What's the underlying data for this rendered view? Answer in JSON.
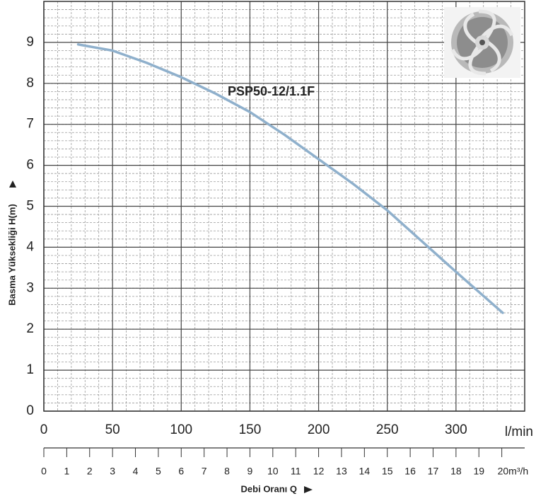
{
  "chart_data": {
    "type": "line",
    "xlabel": "Debi Oranı Q",
    "ylabel": "Basma Yüksekliği H(m)",
    "xunit": "l/min",
    "x": [
      25,
      50,
      75,
      100,
      125,
      150,
      175,
      200,
      225,
      250,
      275,
      300,
      334
    ],
    "series": [
      {
        "name": "PSP50-12/1.1F",
        "color": "#8fb0cc",
        "values": [
          8.95,
          8.8,
          8.5,
          8.15,
          7.75,
          7.3,
          6.75,
          6.15,
          5.55,
          4.9,
          4.15,
          3.4,
          2.4
        ]
      }
    ],
    "xlim": [
      0,
      350
    ],
    "xticks": [
      0,
      50,
      100,
      150,
      200,
      250,
      300
    ],
    "ylim": [
      0,
      10
    ],
    "yticks": [
      0,
      1,
      2,
      3,
      4,
      5,
      6,
      7,
      8,
      9
    ],
    "x2lim": [
      0,
      21
    ],
    "x2ticks": [
      0,
      1,
      2,
      3,
      4,
      5,
      6,
      7,
      8,
      9,
      10,
      11,
      12,
      13,
      14,
      15,
      16,
      17,
      18,
      19,
      {
        "value": 20,
        "label": "20m³/h"
      }
    ],
    "grid": true,
    "label_color": "#1a8a7a"
  }
}
